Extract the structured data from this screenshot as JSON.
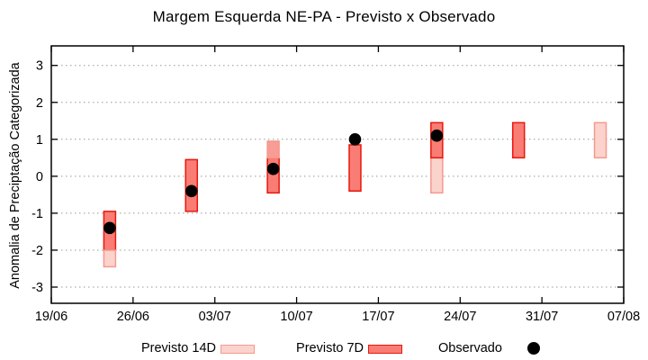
{
  "title": "Margem Esquerda NE-PA - Previsto x Observado",
  "legend": {
    "items": [
      {
        "label": "Previsto 14D",
        "swatch": "light"
      },
      {
        "label": "Previsto 7D",
        "swatch": "dark"
      },
      {
        "label": "Observado",
        "swatch": "dot"
      }
    ]
  },
  "chart_data": {
    "type": "bar",
    "title": "Margem Esquerda NE-PA - Previsto x Observado",
    "xlabel": "",
    "ylabel": "Anomalia de Preciptação Categorizada",
    "x_tick_labels": [
      "19/06",
      "26/06",
      "03/07",
      "10/07",
      "17/07",
      "24/07",
      "31/07",
      "07/08"
    ],
    "x_tick_days": [
      0,
      7,
      14,
      21,
      28,
      35,
      42,
      49
    ],
    "x_total_days": 49,
    "y_ticks": [
      3,
      2,
      1,
      0,
      -1,
      -2,
      -3
    ],
    "ylim": [
      -3.45,
      3.5
    ],
    "grid": "dotted horizontal lines at each y tick",
    "legend_position": "below plot, horizontal",
    "series": [
      {
        "name": "Previsto 14D",
        "style": "light pink box",
        "fill": "#fbd3cc",
        "stroke": "#f4998f"
      },
      {
        "name": "Previsto 7D",
        "style": "red box",
        "fill": "#f97d74",
        "stroke": "#e8170e"
      },
      {
        "name": "Observado",
        "style": "black dot",
        "fill": "#000000"
      }
    ],
    "bars": [
      {
        "date": "24/06",
        "day": 5,
        "observed": -1.4,
        "segments": [
          {
            "type": "dark",
            "from": -2.0,
            "to": -0.95
          },
          {
            "type": "light",
            "from": -2.45,
            "to": -2.0
          }
        ]
      },
      {
        "date": "01/07",
        "day": 12,
        "observed": -0.4,
        "segments": [
          {
            "type": "dark",
            "from": -0.95,
            "to": 0.45
          }
        ]
      },
      {
        "date": "08/07",
        "day": 19,
        "observed": 0.2,
        "segments": [
          {
            "type": "dark",
            "from": -0.45,
            "to": 0.5
          },
          {
            "type": "blend",
            "from": 0.5,
            "to": 0.95
          }
        ]
      },
      {
        "date": "15/07",
        "day": 26,
        "observed": 1.0,
        "segments": [
          {
            "type": "dark",
            "from": -0.4,
            "to": 0.85
          }
        ]
      },
      {
        "date": "22/07",
        "day": 33,
        "observed": 1.1,
        "segments": [
          {
            "type": "light",
            "from": -0.45,
            "to": 0.5
          },
          {
            "type": "dark",
            "from": 0.5,
            "to": 1.45
          }
        ]
      },
      {
        "date": "29/07",
        "day": 40,
        "observed": null,
        "segments": [
          {
            "type": "dark",
            "from": 0.5,
            "to": 1.45
          }
        ]
      },
      {
        "date": "05/08",
        "day": 47,
        "observed": null,
        "segments": [
          {
            "type": "light",
            "from": 0.5,
            "to": 1.45
          }
        ]
      }
    ],
    "colors": {
      "light_fill": "#fbd3cc",
      "light_stroke": "#f4998f",
      "dark_fill": "#f97d74",
      "dark_stroke": "#e8170e",
      "blend_fill": "#f99c93",
      "blend_stroke": "#f4998f",
      "observed": "#000000",
      "grid": "#999999",
      "axis": "#000000"
    }
  }
}
